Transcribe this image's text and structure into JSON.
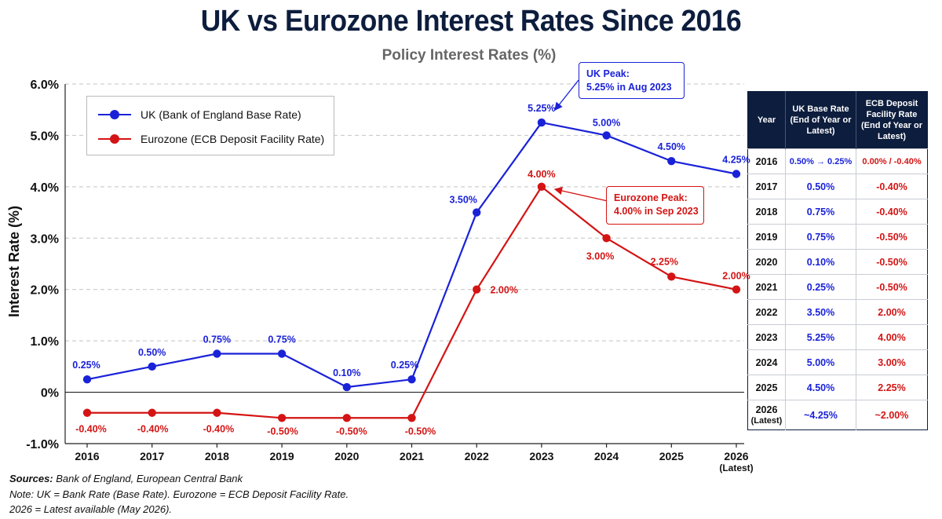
{
  "title": "UK vs Eurozone Interest Rates Since 2016",
  "subtitle": "Policy Interest Rates (%)",
  "colors": {
    "uk": "#1a22d8",
    "eurozone": "#d41414",
    "table_header": "#0d1d3d"
  },
  "chart_data": {
    "type": "line",
    "ylabel": "Interest Rate (%)",
    "xlabel": "",
    "ylim": [
      -1.0,
      6.0
    ],
    "y_ticks": [
      {
        "value": 6,
        "label": "6.0%"
      },
      {
        "value": 5,
        "label": "5.0%"
      },
      {
        "value": 4,
        "label": "4.0%"
      },
      {
        "value": 3,
        "label": "3.0%"
      },
      {
        "value": 2,
        "label": "2.0%"
      },
      {
        "value": 1,
        "label": "1.0%"
      },
      {
        "value": 0,
        "label": "0%"
      },
      {
        "value": -1,
        "label": "-1.0%"
      }
    ],
    "categories": [
      "2016",
      "2017",
      "2018",
      "2019",
      "2020",
      "2021",
      "2022",
      "2023",
      "2024",
      "2025",
      "2026"
    ],
    "category_sublabels": {
      "2026": "(Latest)"
    },
    "grid": "horizontal dashed",
    "legend_position": "top-left",
    "series": [
      {
        "name": "UK (Bank of England Base Rate)",
        "color": "#1a22d8",
        "values": [
          0.25,
          0.5,
          0.75,
          0.75,
          0.1,
          0.25,
          3.5,
          5.25,
          5.0,
          4.5,
          4.25
        ],
        "labels": [
          "0.25%",
          "0.50%",
          "0.75%",
          "0.75%",
          "0.10%",
          "0.25%",
          "3.50%",
          "5.25%",
          "5.00%",
          "4.50%",
          "4.25%"
        ]
      },
      {
        "name": "Eurozone (ECB Deposit Facility Rate)",
        "color": "#d41414",
        "values": [
          -0.4,
          -0.4,
          -0.4,
          -0.5,
          -0.5,
          -0.5,
          2.0,
          4.0,
          3.0,
          2.25,
          2.0
        ],
        "labels": [
          "-0.40%",
          "-0.40%",
          "-0.40%",
          "-0.50%",
          "-0.50%",
          "-0.50%",
          "2.00%",
          "4.00%",
          "3.00%",
          "2.25%",
          "2.00%"
        ]
      }
    ],
    "annotations": [
      {
        "series": "UK",
        "line1": "UK Peak:",
        "line2": "5.25% in Aug 2023"
      },
      {
        "series": "Eurozone",
        "line1": "Eurozone Peak:",
        "line2": "4.00% in Sep 2023"
      }
    ]
  },
  "table": {
    "headers": [
      "Year",
      "UK Base Rate (End of Year or Latest)",
      "ECB Deposit Facility Rate (End of Year or Latest)"
    ],
    "rows": [
      {
        "year": "2016",
        "uk": "0.50% → 0.25%",
        "ez": "0.00% / -0.40%"
      },
      {
        "year": "2017",
        "uk": "0.50%",
        "ez": "-0.40%"
      },
      {
        "year": "2018",
        "uk": "0.75%",
        "ez": "-0.40%"
      },
      {
        "year": "2019",
        "uk": "0.75%",
        "ez": "-0.50%"
      },
      {
        "year": "2020",
        "uk": "0.10%",
        "ez": "-0.50%"
      },
      {
        "year": "2021",
        "uk": "0.25%",
        "ez": "-0.50%"
      },
      {
        "year": "2022",
        "uk": "3.50%",
        "ez": "2.00%"
      },
      {
        "year": "2023",
        "uk": "5.25%",
        "ez": "4.00%"
      },
      {
        "year": "2024",
        "uk": "5.00%",
        "ez": "3.00%"
      },
      {
        "year": "2025",
        "uk": "4.50%",
        "ez": "2.25%"
      },
      {
        "year": "2026",
        "year_sub": "(Latest)",
        "uk": "~4.25%",
        "ez": "~2.00%"
      }
    ]
  },
  "notes": {
    "sources_label": "Sources:",
    "sources": " Bank of England, European Central Bank",
    "note1": "Note: UK = Bank Rate (Base Rate). Eurozone = ECB Deposit Facility Rate.",
    "note2": "2026 = Latest available (May 2026)."
  }
}
